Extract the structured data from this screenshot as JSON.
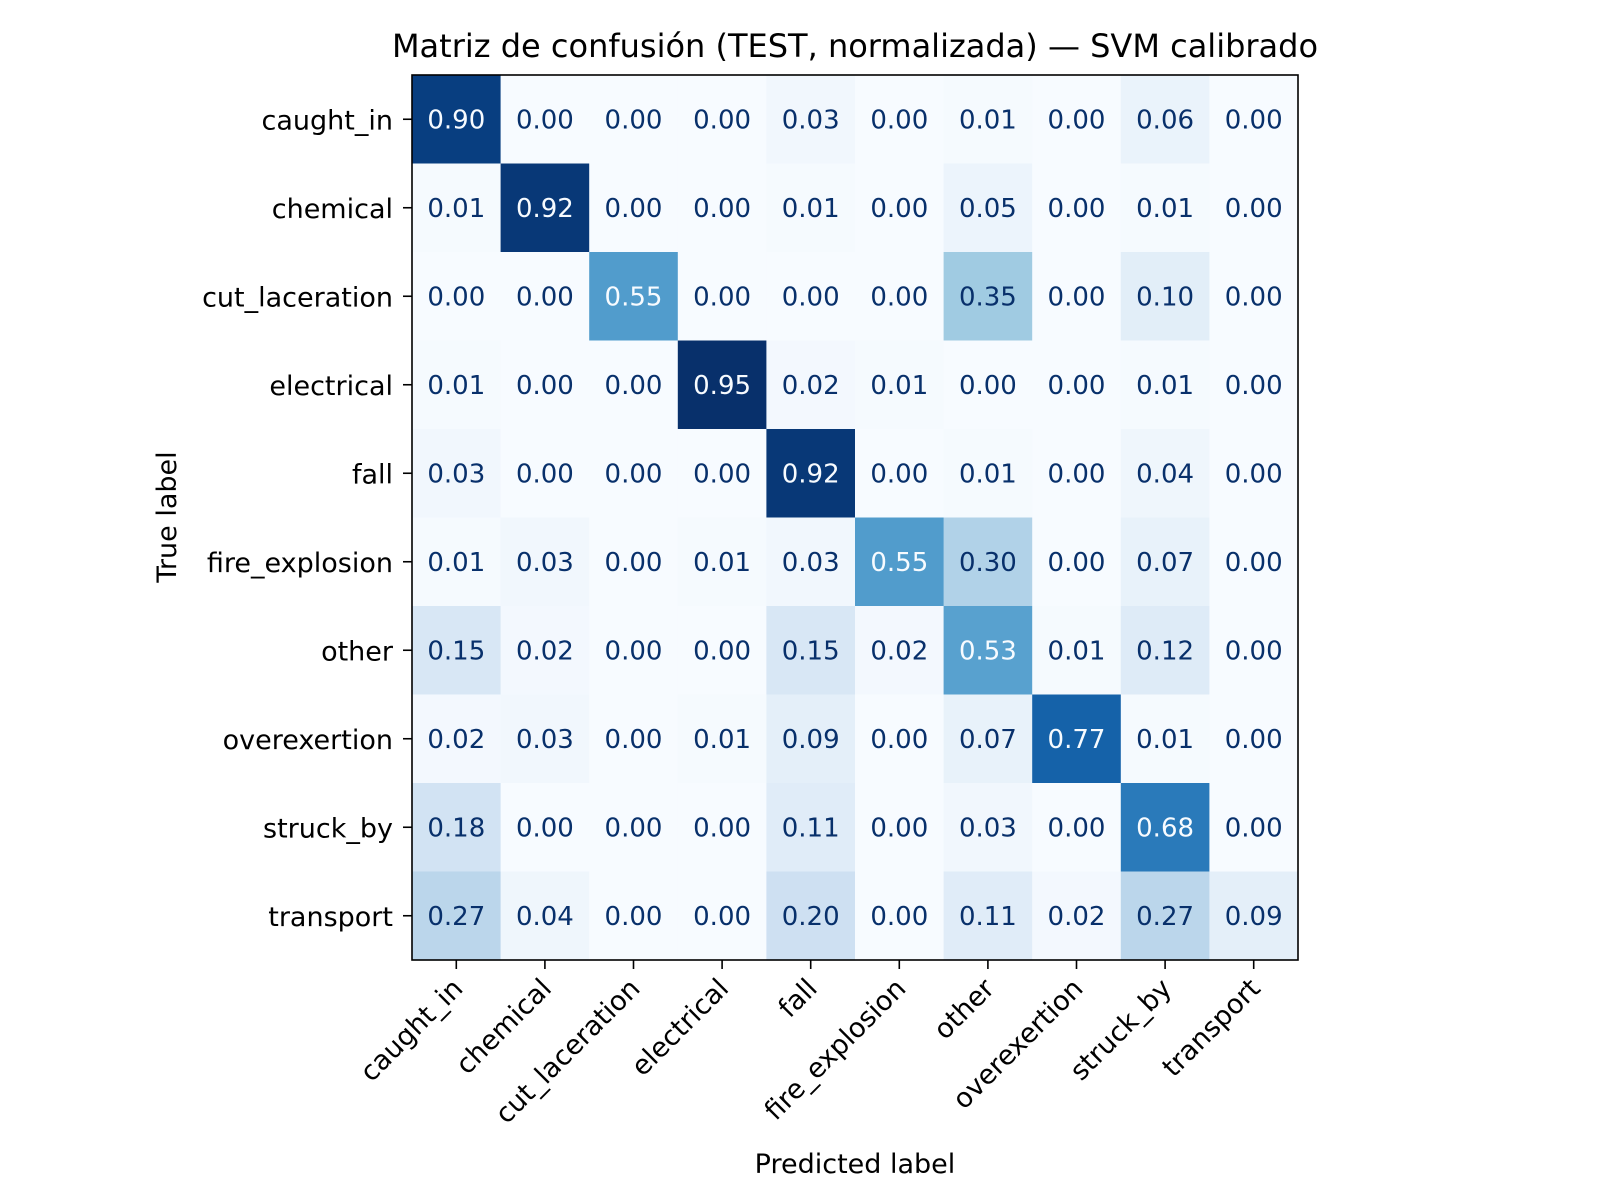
{
  "chart_data": {
    "type": "heatmap",
    "title": "Matriz de confusión (TEST, normalizada) — SVM calibrado",
    "xlabel": "Predicted label",
    "ylabel": "True label",
    "x_categories": [
      "caught_in",
      "chemical",
      "cut_laceration",
      "electrical",
      "fall",
      "fire_explosion",
      "other",
      "overexertion",
      "struck_by",
      "transport"
    ],
    "y_categories": [
      "caught_in",
      "chemical",
      "cut_laceration",
      "electrical",
      "fall",
      "fire_explosion",
      "other",
      "overexertion",
      "struck_by",
      "transport"
    ],
    "values": [
      [
        0.9,
        0.0,
        0.0,
        0.0,
        0.03,
        0.0,
        0.01,
        0.0,
        0.06,
        0.0
      ],
      [
        0.01,
        0.92,
        0.0,
        0.0,
        0.01,
        0.0,
        0.05,
        0.0,
        0.01,
        0.0
      ],
      [
        0.0,
        0.0,
        0.55,
        0.0,
        0.0,
        0.0,
        0.35,
        0.0,
        0.1,
        0.0
      ],
      [
        0.01,
        0.0,
        0.0,
        0.95,
        0.02,
        0.01,
        0.0,
        0.0,
        0.01,
        0.0
      ],
      [
        0.03,
        0.0,
        0.0,
        0.0,
        0.92,
        0.0,
        0.01,
        0.0,
        0.04,
        0.0
      ],
      [
        0.01,
        0.03,
        0.0,
        0.01,
        0.03,
        0.55,
        0.3,
        0.0,
        0.07,
        0.0
      ],
      [
        0.15,
        0.02,
        0.0,
        0.0,
        0.15,
        0.02,
        0.53,
        0.01,
        0.12,
        0.0
      ],
      [
        0.02,
        0.03,
        0.0,
        0.01,
        0.09,
        0.0,
        0.07,
        0.77,
        0.01,
        0.0
      ],
      [
        0.18,
        0.0,
        0.0,
        0.0,
        0.11,
        0.0,
        0.03,
        0.0,
        0.68,
        0.0
      ],
      [
        0.27,
        0.04,
        0.0,
        0.0,
        0.2,
        0.0,
        0.11,
        0.02,
        0.27,
        0.09
      ]
    ],
    "value_format": "0.00",
    "colormap": "Blues",
    "vmin": 0.0,
    "vmax": 0.95,
    "grid": false,
    "colorbar": false
  }
}
